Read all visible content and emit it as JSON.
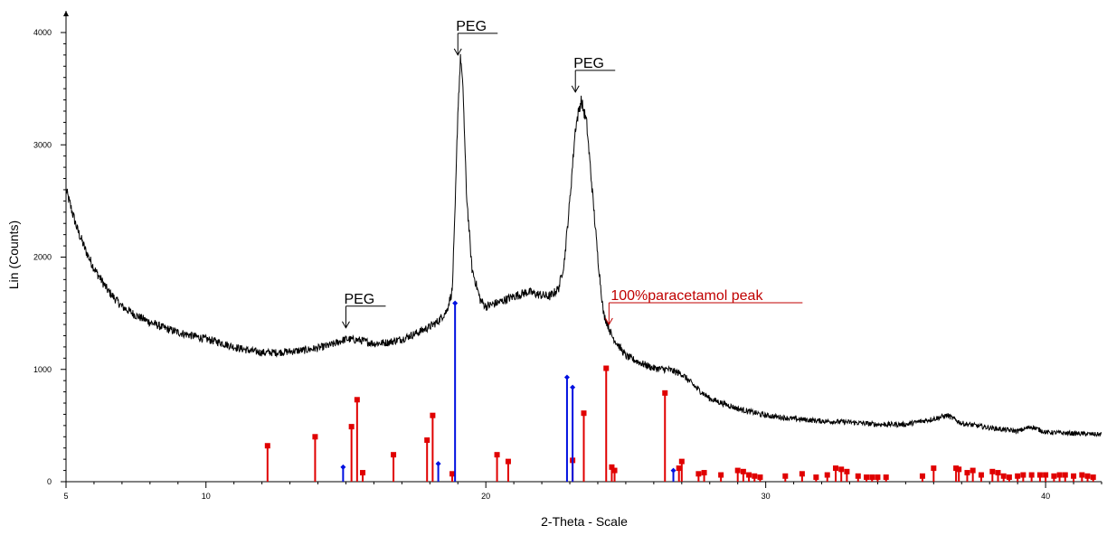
{
  "chart_data": {
    "type": "line",
    "title": "",
    "xlabel": "2-Theta - Scale",
    "ylabel": "Lin (Counts)",
    "xlim": [
      5,
      42
    ],
    "ylim": [
      0,
      4000
    ],
    "x_ticks": [
      5,
      10,
      20,
      30,
      40
    ],
    "x_tick_labels": [
      "5",
      "10",
      "20",
      "30",
      "40"
    ],
    "y_ticks": [
      0,
      1000,
      2000,
      3000,
      4000
    ],
    "y_tick_labels": [
      "0",
      "1000",
      "2000",
      "3000",
      "4000"
    ],
    "grid": false,
    "colors": {
      "pattern": "#000000",
      "paracetamol": "#e00000",
      "peg": "#0010e0",
      "annotation_red": "#c00000"
    },
    "pattern": {
      "x": [
        5.0,
        5.2,
        5.4,
        5.7,
        6.0,
        6.5,
        7.0,
        7.5,
        8.0,
        8.5,
        9.0,
        9.5,
        10.0,
        10.5,
        11.0,
        11.5,
        12.0,
        12.5,
        13.0,
        13.5,
        14.0,
        14.5,
        15.0,
        15.5,
        16.0,
        16.5,
        17.0,
        17.5,
        18.0,
        18.3,
        18.6,
        18.8,
        18.9,
        19.0,
        19.1,
        19.2,
        19.3,
        19.5,
        19.8,
        20.0,
        20.5,
        21.0,
        21.5,
        22.0,
        22.3,
        22.6,
        22.8,
        23.0,
        23.2,
        23.4,
        23.6,
        23.8,
        24.0,
        24.2,
        24.5,
        25.0,
        25.5,
        26.0,
        26.5,
        27.0,
        27.5,
        28.0,
        29.0,
        30.0,
        31.0,
        32.0,
        33.0,
        34.0,
        35.0,
        36.0,
        36.5,
        37.0,
        38.0,
        39.0,
        39.5,
        40.0,
        41.0,
        42.0
      ],
      "y": [
        2600,
        2420,
        2250,
        2060,
        1900,
        1700,
        1560,
        1480,
        1420,
        1370,
        1330,
        1300,
        1270,
        1240,
        1200,
        1170,
        1150,
        1150,
        1160,
        1170,
        1190,
        1220,
        1270,
        1260,
        1230,
        1240,
        1270,
        1320,
        1380,
        1430,
        1520,
        1700,
        2400,
        3300,
        3800,
        3400,
        2600,
        1900,
        1620,
        1560,
        1600,
        1650,
        1690,
        1660,
        1650,
        1720,
        1950,
        2500,
        3150,
        3400,
        3200,
        2600,
        2000,
        1500,
        1300,
        1120,
        1060,
        1010,
        1000,
        960,
        840,
        740,
        650,
        590,
        560,
        540,
        530,
        510,
        510,
        560,
        590,
        520,
        480,
        450,
        490,
        440,
        430,
        420
      ]
    },
    "reference_sticks": [
      {
        "name": "paracetamol",
        "x": [
          12.2,
          13.9,
          15.2,
          15.4,
          15.6,
          16.7,
          17.9,
          18.1,
          18.8,
          20.4,
          20.8,
          23.1,
          23.5,
          24.3,
          24.5,
          24.6,
          26.4,
          26.9,
          27.0,
          27.6,
          27.8,
          28.4,
          29.0,
          29.2,
          29.4,
          29.6,
          29.8,
          30.7,
          31.3,
          31.8,
          32.2,
          32.5,
          32.7,
          32.9,
          33.3,
          33.6,
          33.8,
          34.0,
          34.3,
          35.6,
          36.0,
          36.8,
          36.9,
          37.2,
          37.4,
          37.7,
          38.1,
          38.3,
          38.5,
          38.7,
          39.0,
          39.2,
          39.5,
          39.8,
          40.0,
          40.3,
          40.5,
          40.7,
          41.0,
          41.3,
          41.5,
          41.7
        ],
        "y": [
          320,
          400,
          490,
          730,
          80,
          240,
          370,
          590,
          70,
          240,
          180,
          190,
          610,
          1010,
          130,
          100,
          790,
          120,
          180,
          70,
          80,
          60,
          100,
          90,
          60,
          50,
          40,
          50,
          70,
          40,
          60,
          120,
          110,
          90,
          50,
          40,
          40,
          40,
          40,
          50,
          120,
          120,
          110,
          80,
          100,
          60,
          90,
          80,
          50,
          40,
          50,
          60,
          60,
          60,
          60,
          50,
          60,
          60,
          50,
          60,
          50,
          40
        ]
      },
      {
        "name": "PEG",
        "x": [
          14.9,
          18.3,
          18.9,
          22.9,
          23.1,
          26.7
        ],
        "y": [
          130,
          160,
          1590,
          930,
          840,
          100
        ]
      }
    ],
    "annotations": [
      {
        "label": "PEG",
        "x": 19.0,
        "y": 3800,
        "color": "#000000"
      },
      {
        "label": "PEG",
        "x": 23.2,
        "y": 3470,
        "color": "#000000"
      },
      {
        "label": "PEG",
        "x": 15.0,
        "y": 1370,
        "color": "#000000"
      },
      {
        "label": "100%paracetamol peak",
        "x": 24.4,
        "y": 1400,
        "color": "#c00000"
      }
    ]
  }
}
